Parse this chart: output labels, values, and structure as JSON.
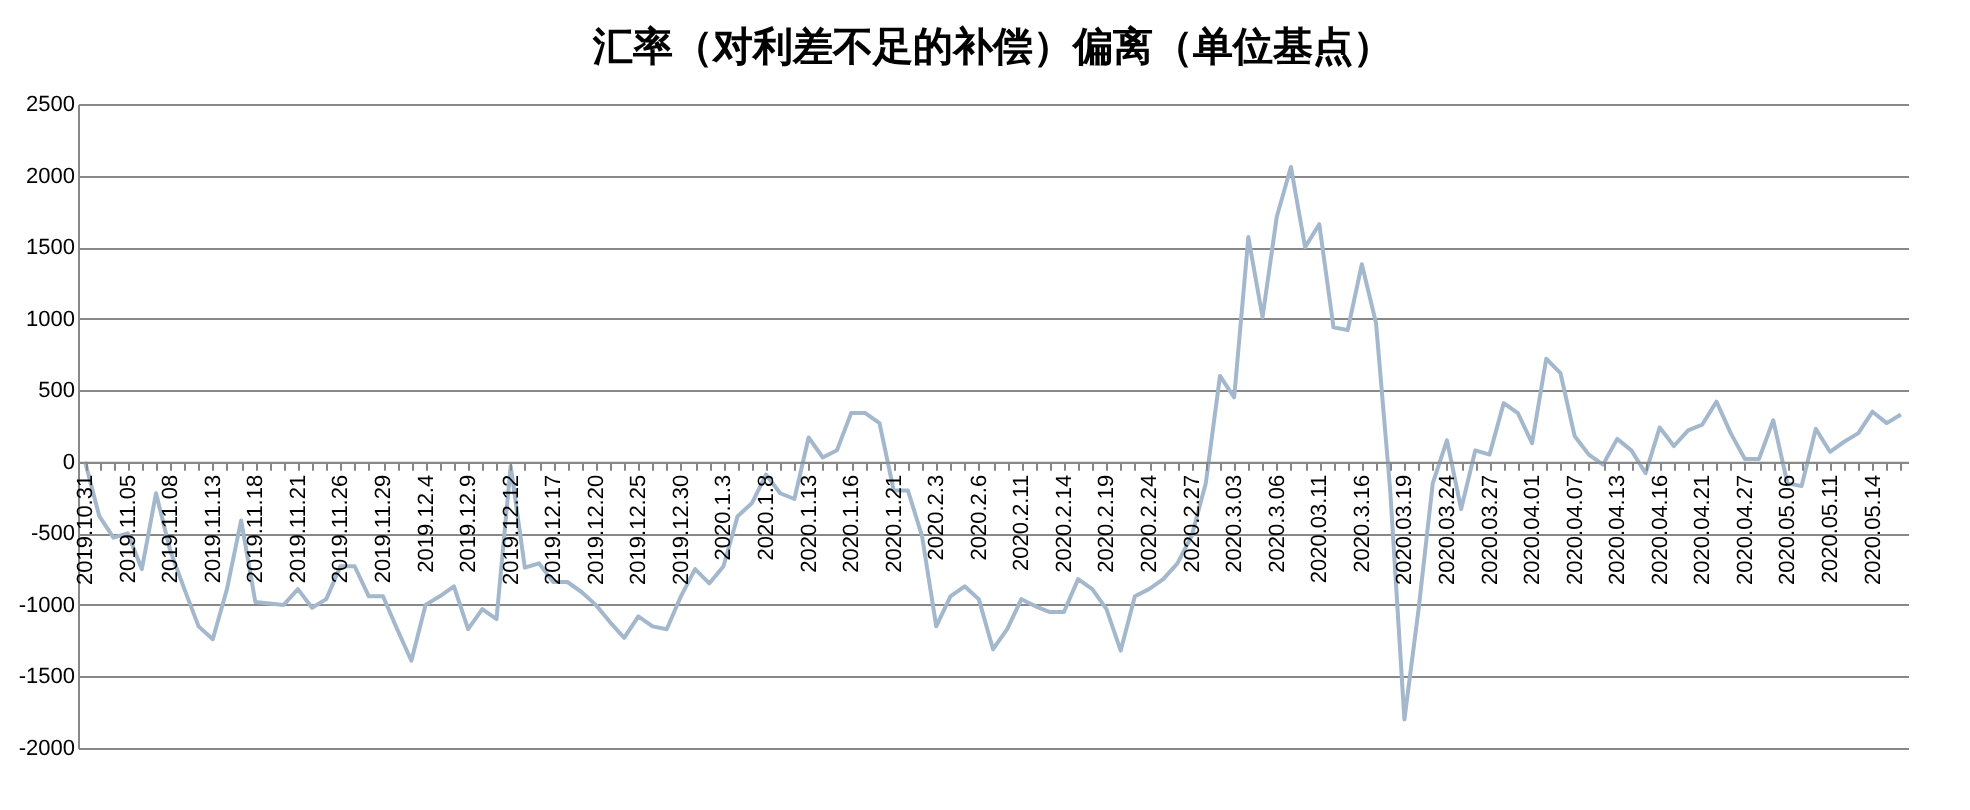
{
  "chart_data": {
    "type": "line",
    "title": "汇率（对利差不足的补偿）偏离（单位基点）",
    "categories": [
      "2019.10.31",
      null,
      null,
      "2019.11.05",
      null,
      null,
      "2019.11.08",
      null,
      null,
      "2019.11.13",
      null,
      null,
      "2019.11.18",
      null,
      null,
      "2019.11.21",
      null,
      null,
      "2019.11.26",
      null,
      null,
      "2019.11.29",
      null,
      null,
      "2019.12.4",
      null,
      null,
      "2019.12.9",
      null,
      null,
      "2019.12.12",
      null,
      null,
      "2019.12.17",
      null,
      null,
      "2019.12.20",
      null,
      null,
      "2019.12.25",
      null,
      null,
      "2019.12.30",
      null,
      null,
      "2020.1.3",
      null,
      null,
      "2020.1.8",
      null,
      null,
      "2020.1.13",
      null,
      null,
      "2020.1.16",
      null,
      null,
      "2020.1.21",
      null,
      null,
      "2020.2.3",
      null,
      null,
      "2020.2.6",
      null,
      null,
      "2020.2.11",
      null,
      null,
      "2020.2.14",
      null,
      null,
      "2020.2.19",
      null,
      null,
      "2020.2.24",
      null,
      null,
      "2020.2.27",
      null,
      null,
      "2020.3.03",
      null,
      null,
      "2020.3.06",
      null,
      null,
      "2020.03.11",
      null,
      null,
      "2020.3.16",
      null,
      null,
      "2020.03.19",
      null,
      null,
      "2020.03.24",
      null,
      null,
      "2020.03.27",
      null,
      null,
      "2020.04.01",
      null,
      null,
      "2020.04.07",
      null,
      null,
      "2020.04.13",
      null,
      null,
      "2020.04.16",
      null,
      null,
      "2020.04.21",
      null,
      null,
      "2020.04.27",
      null,
      null,
      "2020.05.06",
      null,
      null,
      "2020.05.11",
      null,
      null,
      "2020.05.14",
      null,
      null
    ],
    "series": [
      {
        "color": "#a3b8cc",
        "values": [
          0,
          -380,
          -530,
          -500,
          -750,
          -220,
          -620,
          -890,
          -1150,
          -1240,
          -890,
          -410,
          -980,
          -990,
          -1000,
          -890,
          -1020,
          -960,
          -730,
          -730,
          -940,
          -940,
          -1170,
          -1390,
          -1000,
          -940,
          -870,
          -1170,
          -1030,
          -1100,
          -30,
          -740,
          -710,
          -840,
          -840,
          -910,
          -1000,
          -1120,
          -1230,
          -1080,
          -1150,
          -1170,
          -940,
          -750,
          -850,
          -730,
          -380,
          -290,
          -90,
          -220,
          -260,
          170,
          30,
          80,
          340,
          340,
          270,
          -200,
          -200,
          -520,
          -1150,
          -940,
          -870,
          -960,
          -1310,
          -1170,
          -960,
          -1010,
          -1050,
          -1050,
          -820,
          -890,
          -1030,
          -1320,
          -940,
          -890,
          -820,
          -710,
          -520,
          -150,
          600,
          450,
          1570,
          1010,
          1710,
          2060,
          1500,
          1660,
          940,
          920,
          1380,
          970,
          -200,
          -1800,
          -1030,
          -150,
          150,
          -330,
          80,
          50,
          410,
          340,
          130,
          720,
          620,
          180,
          50,
          -20,
          160,
          80,
          -80,
          240,
          110,
          220,
          260,
          420,
          200,
          20,
          20,
          290,
          -150,
          -170,
          230,
          70,
          140,
          200,
          350,
          270,
          330
        ]
      }
    ],
    "ylim": [
      -2000,
      2500
    ],
    "yticks": [
      -2000,
      -1500,
      -1000,
      -500,
      0,
      500,
      1000,
      1500,
      2000,
      2500
    ],
    "grid": "y",
    "legend": false,
    "marker": "none",
    "line_style": "solid"
  }
}
